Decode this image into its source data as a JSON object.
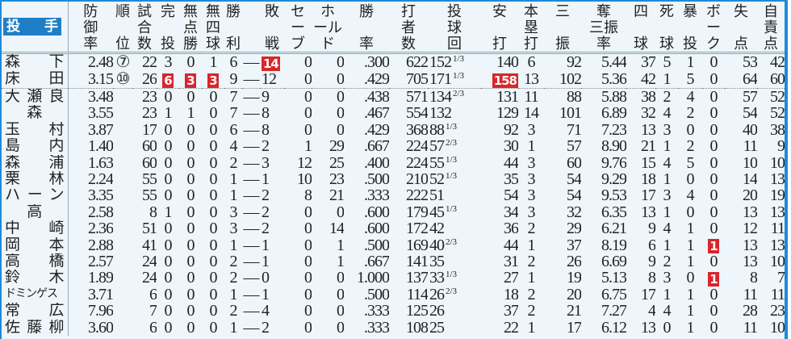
{
  "header": {
    "pitcher_label": "投 手",
    "columns": [
      "防\n御\n率",
      "順\n\n位",
      "試\n合\n数",
      "完\n\n投",
      "無\n点\n勝",
      "無\n四\n球",
      "勝\n\n利",
      "",
      "敗\n\n戦",
      "セ\nー\nブ",
      "ホ\nール\nド",
      "勝\n\n率",
      "打\n者\n数",
      "投\n球\n回",
      "安\n\n打",
      "本\n塁\n打",
      "三\n\n振",
      "奪\n三振\n率",
      "四\n\n球",
      "死\n\n球",
      "暴\n\n投",
      "ボ\nー\nク",
      "失\n\n点",
      "自\n責\n点"
    ]
  },
  "highlight_color": "#d8262b",
  "border_color": "#1e8ad8",
  "rows": [
    {
      "name": "森下",
      "era": "2.48",
      "rank": "⑦",
      "g": "22",
      "cg": "3",
      "sho": "0",
      "nobb": "1",
      "w": "6",
      "dash": "—",
      "l": "14",
      "sv": "0",
      "hld": "0",
      "pct": ".300",
      "bf": "622",
      "ip": "152",
      "ipf": "1/3",
      "h": "140",
      "hr": "6",
      "so": "92",
      "k9": "5.44",
      "bb": "37",
      "hbp": "5",
      "wp": "1",
      "bk": "0",
      "r": "53",
      "er": "42",
      "hl": [
        "l"
      ]
    },
    {
      "name": "床田",
      "era": "3.15",
      "rank": "⑩",
      "g": "26",
      "cg": "6",
      "sho": "3",
      "nobb": "3",
      "w": "9",
      "dash": "—",
      "l": "12",
      "sv": "0",
      "hld": "0",
      "pct": ".429",
      "bf": "705",
      "ip": "171",
      "ipf": "1/3",
      "h": "158",
      "hr": "13",
      "so": "102",
      "k9": "5.36",
      "bb": "42",
      "hbp": "1",
      "wp": "5",
      "bk": "0",
      "r": "64",
      "er": "60",
      "hl": [
        "cg",
        "sho",
        "nobb",
        "h"
      ]
    },
    {
      "name": "大瀬良",
      "era": "3.48",
      "rank": "",
      "g": "23",
      "cg": "0",
      "sho": "0",
      "nobb": "0",
      "w": "7",
      "dash": "—",
      "l": "9",
      "sv": "0",
      "hld": "0",
      "pct": ".438",
      "bf": "571",
      "ip": "134",
      "ipf": "2/3",
      "h": "131",
      "hr": "11",
      "so": "88",
      "k9": "5.88",
      "bb": "38",
      "hbp": "2",
      "wp": "4",
      "bk": "0",
      "r": "57",
      "er": "52",
      "hl": []
    },
    {
      "name": "森",
      "era": "3.55",
      "rank": "",
      "g": "23",
      "cg": "1",
      "sho": "1",
      "nobb": "0",
      "w": "7",
      "dash": "—",
      "l": "8",
      "sv": "0",
      "hld": "0",
      "pct": ".467",
      "bf": "554",
      "ip": "132",
      "ipf": "",
      "h": "129",
      "hr": "14",
      "so": "101",
      "k9": "6.89",
      "bb": "32",
      "hbp": "4",
      "wp": "2",
      "bk": "0",
      "r": "54",
      "er": "52",
      "hl": []
    },
    {
      "name": "玉村",
      "era": "3.87",
      "rank": "",
      "g": "17",
      "cg": "0",
      "sho": "0",
      "nobb": "0",
      "w": "6",
      "dash": "—",
      "l": "8",
      "sv": "0",
      "hld": "0",
      "pct": ".429",
      "bf": "368",
      "ip": "88",
      "ipf": "1/3",
      "h": "92",
      "hr": "3",
      "so": "71",
      "k9": "7.23",
      "bb": "13",
      "hbp": "3",
      "wp": "0",
      "bk": "0",
      "r": "40",
      "er": "38",
      "hl": []
    },
    {
      "name": "島内",
      "era": "1.40",
      "rank": "",
      "g": "60",
      "cg": "0",
      "sho": "0",
      "nobb": "0",
      "w": "4",
      "dash": "—",
      "l": "2",
      "sv": "1",
      "hld": "29",
      "pct": ".667",
      "bf": "224",
      "ip": "57",
      "ipf": "2/3",
      "h": "30",
      "hr": "1",
      "so": "57",
      "k9": "8.90",
      "bb": "21",
      "hbp": "1",
      "wp": "2",
      "bk": "0",
      "r": "11",
      "er": "9",
      "hl": []
    },
    {
      "name": "森浦",
      "era": "1.63",
      "rank": "",
      "g": "60",
      "cg": "0",
      "sho": "0",
      "nobb": "0",
      "w": "2",
      "dash": "—",
      "l": "3",
      "sv": "12",
      "hld": "25",
      "pct": ".400",
      "bf": "224",
      "ip": "55",
      "ipf": "1/3",
      "h": "44",
      "hr": "3",
      "so": "60",
      "k9": "9.76",
      "bb": "15",
      "hbp": "4",
      "wp": "5",
      "bk": "0",
      "r": "10",
      "er": "10",
      "hl": []
    },
    {
      "name": "栗林",
      "era": "2.24",
      "rank": "",
      "g": "55",
      "cg": "0",
      "sho": "0",
      "nobb": "0",
      "w": "1",
      "dash": "—",
      "l": "1",
      "sv": "10",
      "hld": "23",
      "pct": ".500",
      "bf": "210",
      "ip": "52",
      "ipf": "1/3",
      "h": "35",
      "hr": "3",
      "so": "54",
      "k9": "9.29",
      "bb": "18",
      "hbp": "1",
      "wp": "0",
      "bk": "0",
      "r": "14",
      "er": "13",
      "hl": []
    },
    {
      "name": "ハーン",
      "era": "3.35",
      "rank": "",
      "g": "55",
      "cg": "0",
      "sho": "0",
      "nobb": "0",
      "w": "1",
      "dash": "—",
      "l": "2",
      "sv": "8",
      "hld": "21",
      "pct": ".333",
      "bf": "222",
      "ip": "51",
      "ipf": "",
      "h": "54",
      "hr": "3",
      "so": "54",
      "k9": "9.53",
      "bb": "17",
      "hbp": "3",
      "wp": "4",
      "bk": "0",
      "r": "20",
      "er": "19",
      "hl": []
    },
    {
      "name": "高",
      "era": "2.58",
      "rank": "",
      "g": "8",
      "cg": "1",
      "sho": "0",
      "nobb": "0",
      "w": "3",
      "dash": "—",
      "l": "2",
      "sv": "0",
      "hld": "0",
      "pct": ".600",
      "bf": "179",
      "ip": "45",
      "ipf": "1/3",
      "h": "34",
      "hr": "3",
      "so": "32",
      "k9": "6.35",
      "bb": "13",
      "hbp": "1",
      "wp": "0",
      "bk": "0",
      "r": "13",
      "er": "13",
      "hl": []
    },
    {
      "name": "中崎",
      "era": "2.36",
      "rank": "",
      "g": "51",
      "cg": "0",
      "sho": "0",
      "nobb": "0",
      "w": "3",
      "dash": "—",
      "l": "2",
      "sv": "0",
      "hld": "14",
      "pct": ".600",
      "bf": "172",
      "ip": "42",
      "ipf": "",
      "h": "36",
      "hr": "2",
      "so": "29",
      "k9": "6.21",
      "bb": "9",
      "hbp": "4",
      "wp": "1",
      "bk": "0",
      "r": "12",
      "er": "11",
      "hl": []
    },
    {
      "name": "岡本",
      "era": "2.88",
      "rank": "",
      "g": "41",
      "cg": "0",
      "sho": "0",
      "nobb": "0",
      "w": "1",
      "dash": "—",
      "l": "1",
      "sv": "0",
      "hld": "1",
      "pct": ".500",
      "bf": "169",
      "ip": "40",
      "ipf": "2/3",
      "h": "44",
      "hr": "1",
      "so": "37",
      "k9": "8.19",
      "bb": "6",
      "hbp": "1",
      "wp": "1",
      "bk": "1",
      "r": "13",
      "er": "13",
      "hl": [
        "bk"
      ]
    },
    {
      "name": "高橋",
      "era": "2.57",
      "rank": "",
      "g": "24",
      "cg": "0",
      "sho": "0",
      "nobb": "0",
      "w": "2",
      "dash": "—",
      "l": "1",
      "sv": "0",
      "hld": "1",
      "pct": ".667",
      "bf": "141",
      "ip": "35",
      "ipf": "",
      "h": "31",
      "hr": "2",
      "so": "26",
      "k9": "6.69",
      "bb": "9",
      "hbp": "2",
      "wp": "1",
      "bk": "0",
      "r": "13",
      "er": "10",
      "hl": []
    },
    {
      "name": "鈴木",
      "era": "1.89",
      "rank": "",
      "g": "24",
      "cg": "0",
      "sho": "0",
      "nobb": "0",
      "w": "2",
      "dash": "—",
      "l": "0",
      "sv": "0",
      "hld": "0",
      "pct": "1.000",
      "bf": "137",
      "ip": "33",
      "ipf": "1/3",
      "h": "27",
      "hr": "1",
      "so": "19",
      "k9": "5.13",
      "bb": "8",
      "hbp": "3",
      "wp": "0",
      "bk": "1",
      "r": "8",
      "er": "7",
      "hl": [
        "bk"
      ]
    },
    {
      "name": "ドミンゲス",
      "era": "3.71",
      "rank": "",
      "g": "6",
      "cg": "0",
      "sho": "0",
      "nobb": "0",
      "w": "1",
      "dash": "—",
      "l": "1",
      "sv": "0",
      "hld": "0",
      "pct": ".500",
      "bf": "114",
      "ip": "26",
      "ipf": "2/3",
      "h": "18",
      "hr": "2",
      "so": "20",
      "k9": "6.75",
      "bb": "17",
      "hbp": "1",
      "wp": "1",
      "bk": "0",
      "r": "11",
      "er": "11",
      "hl": []
    },
    {
      "name": "常広",
      "era": "7.96",
      "rank": "",
      "g": "7",
      "cg": "0",
      "sho": "0",
      "nobb": "0",
      "w": "2",
      "dash": "—",
      "l": "4",
      "sv": "0",
      "hld": "0",
      "pct": ".333",
      "bf": "125",
      "ip": "26",
      "ipf": "",
      "h": "37",
      "hr": "2",
      "so": "21",
      "k9": "7.27",
      "bb": "4",
      "hbp": "4",
      "wp": "1",
      "bk": "0",
      "r": "28",
      "er": "23",
      "hl": []
    },
    {
      "name": "佐藤柳",
      "era": "3.60",
      "rank": "",
      "g": "6",
      "cg": "0",
      "sho": "0",
      "nobb": "0",
      "w": "1",
      "dash": "—",
      "l": "2",
      "sv": "0",
      "hld": "0",
      "pct": ".333",
      "bf": "108",
      "ip": "25",
      "ipf": "",
      "h": "22",
      "hr": "1",
      "so": "17",
      "k9": "6.12",
      "bb": "13",
      "hbp": "0",
      "wp": "1",
      "bk": "0",
      "r": "11",
      "er": "10",
      "hl": []
    }
  ]
}
